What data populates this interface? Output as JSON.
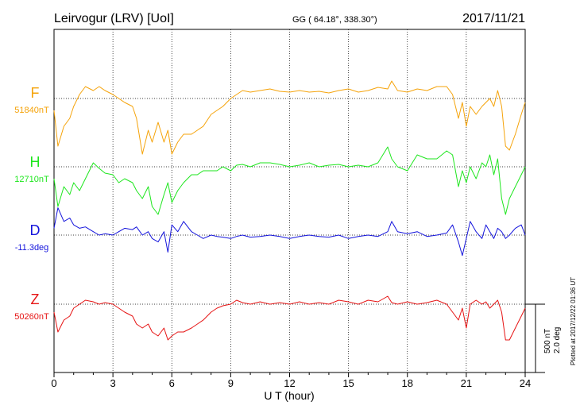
{
  "header": {
    "station": "Leirvogur (LRV)  [UoI]",
    "coords": "GG ( 64.18°, 338.30°)",
    "date": "2017/11/21"
  },
  "plotted_note": "Plotted at 2017/12/22 01:36 UT",
  "scale_bar": {
    "line1": "500 nT",
    "line2": "2.0 deg"
  },
  "colors": {
    "F": "#f5a30a",
    "H": "#1ee61e",
    "D": "#1414dc",
    "Z": "#e61414",
    "axis": "#000000"
  },
  "chart_data": {
    "type": "line",
    "xlabel": "U T (hour)",
    "xlim": [
      0,
      24
    ],
    "xticks": [
      0,
      3,
      6,
      9,
      12,
      15,
      18,
      21,
      24
    ],
    "grid": true,
    "series": [
      {
        "name": "F",
        "base_label": "51840nT",
        "color": "#f5a30a",
        "x": [
          0,
          0.2,
          0.5,
          0.8,
          1,
          1.3,
          1.6,
          2,
          2.3,
          2.6,
          3,
          3.3,
          3.6,
          4,
          4.2,
          4.5,
          4.8,
          5,
          5.3,
          5.6,
          5.8,
          6,
          6.3,
          6.6,
          7,
          7.3,
          7.6,
          8,
          8.3,
          8.6,
          9,
          9.3,
          9.6,
          10,
          10.5,
          11,
          11.5,
          12,
          12.5,
          13,
          13.5,
          14,
          14.5,
          15,
          15.5,
          16,
          16.5,
          17,
          17.2,
          17.5,
          18,
          18.5,
          19,
          19.5,
          20,
          20.3,
          20.6,
          20.8,
          21,
          21.2,
          21.5,
          21.8,
          22,
          22.2,
          22.4,
          22.6,
          22.8,
          23,
          23.2,
          23.5,
          23.8,
          24
        ],
        "y": [
          -15,
          -60,
          -35,
          -25,
          -10,
          5,
          15,
          10,
          15,
          10,
          5,
          0,
          -5,
          -10,
          -25,
          -70,
          -40,
          -55,
          -30,
          -55,
          -40,
          -70,
          -55,
          -45,
          -45,
          -40,
          -35,
          -20,
          -15,
          -10,
          0,
          5,
          10,
          8,
          10,
          12,
          9,
          8,
          10,
          8,
          9,
          7,
          10,
          12,
          8,
          10,
          14,
          12,
          22,
          10,
          8,
          12,
          10,
          15,
          15,
          5,
          -25,
          -5,
          -35,
          -10,
          -20,
          -10,
          -5,
          0,
          -10,
          10,
          -10,
          -60,
          -65,
          -45,
          -20,
          -5
        ]
      },
      {
        "name": "H",
        "base_label": "12710nT",
        "color": "#1ee61e",
        "x": [
          0,
          0.2,
          0.5,
          0.8,
          1,
          1.3,
          1.6,
          2,
          2.3,
          2.6,
          3,
          3.3,
          3.6,
          4,
          4.2,
          4.5,
          4.8,
          5,
          5.3,
          5.6,
          5.8,
          6,
          6.3,
          6.6,
          7,
          7.3,
          7.6,
          8,
          8.3,
          8.6,
          9,
          9.3,
          9.6,
          10,
          10.5,
          11,
          11.5,
          12,
          12.5,
          13,
          13.5,
          14,
          14.5,
          15,
          15.5,
          16,
          16.5,
          17,
          17.2,
          17.5,
          18,
          18.5,
          19,
          19.5,
          20,
          20.3,
          20.6,
          20.8,
          21,
          21.2,
          21.5,
          21.8,
          22,
          22.2,
          22.4,
          22.6,
          22.8,
          23,
          23.2,
          23.5,
          23.8,
          24
        ],
        "y": [
          -15,
          -50,
          -25,
          -35,
          -20,
          -30,
          -15,
          5,
          -2,
          -8,
          -10,
          -20,
          -15,
          -20,
          -30,
          -40,
          -25,
          -50,
          -60,
          -35,
          -20,
          -45,
          -30,
          -20,
          -10,
          -10,
          -5,
          -5,
          -5,
          0,
          -5,
          2,
          3,
          0,
          5,
          5,
          3,
          0,
          2,
          5,
          0,
          2,
          3,
          0,
          2,
          0,
          5,
          25,
          10,
          0,
          -5,
          15,
          10,
          10,
          20,
          15,
          -25,
          -5,
          -20,
          0,
          -15,
          5,
          0,
          15,
          -10,
          10,
          -40,
          -60,
          -40,
          -25,
          -10,
          0
        ]
      },
      {
        "name": "D",
        "base_label": "-11.3deg",
        "color": "#1414dc",
        "x": [
          0,
          0.2,
          0.5,
          0.8,
          1,
          1.3,
          1.6,
          2,
          2.3,
          2.6,
          3,
          3.3,
          3.6,
          4,
          4.2,
          4.5,
          4.8,
          5,
          5.3,
          5.6,
          5.8,
          6,
          6.3,
          6.6,
          7,
          7.3,
          7.6,
          8,
          8.3,
          8.6,
          9,
          9.3,
          9.6,
          10,
          10.5,
          11,
          11.5,
          12,
          12.5,
          13,
          13.5,
          14,
          14.5,
          15,
          15.5,
          16,
          16.5,
          17,
          17.2,
          17.5,
          18,
          18.5,
          19,
          19.5,
          20,
          20.3,
          20.6,
          20.8,
          21,
          21.2,
          21.5,
          21.8,
          22,
          22.2,
          22.4,
          22.6,
          22.8,
          23,
          23.2,
          23.5,
          23.8,
          24
        ],
        "y": [
          0.1,
          0.4,
          0.2,
          0.25,
          0.15,
          0.1,
          0.12,
          0.05,
          0,
          0.02,
          0,
          0.05,
          0.1,
          0.08,
          0.12,
          0,
          0.05,
          -0.05,
          -0.1,
          0.05,
          -0.25,
          0.15,
          0.05,
          0.2,
          0.05,
          0,
          -0.05,
          0,
          -0.02,
          -0.03,
          -0.05,
          -0.02,
          0,
          -0.03,
          -0.02,
          0,
          -0.02,
          -0.05,
          -0.02,
          0,
          -0.02,
          -0.03,
          0,
          -0.05,
          -0.02,
          0,
          -0.02,
          0.05,
          0.2,
          0.05,
          0.02,
          0.05,
          -0.02,
          0,
          0.03,
          0.15,
          -0.1,
          -0.3,
          -0.05,
          0.2,
          0.05,
          -0.05,
          0.15,
          0.05,
          -0.05,
          0.1,
          0.05,
          -0.05,
          0,
          0.1,
          0.15,
          0
        ]
      },
      {
        "name": "Z",
        "base_label": "50260nT",
        "color": "#e61414",
        "x": [
          0,
          0.2,
          0.5,
          0.8,
          1,
          1.3,
          1.6,
          2,
          2.3,
          2.6,
          3,
          3.3,
          3.6,
          4,
          4.2,
          4.5,
          4.8,
          5,
          5.3,
          5.6,
          5.8,
          6,
          6.3,
          6.6,
          7,
          7.3,
          7.6,
          8,
          8.3,
          8.6,
          9,
          9.3,
          9.6,
          10,
          10.5,
          11,
          11.5,
          12,
          12.5,
          13,
          13.5,
          14,
          14.5,
          15,
          15.5,
          16,
          16.5,
          17,
          17.2,
          17.5,
          18,
          18.5,
          19,
          19.5,
          20,
          20.3,
          20.6,
          20.8,
          21,
          21.2,
          21.5,
          21.8,
          22,
          22.2,
          22.4,
          22.6,
          22.8,
          23,
          23.2,
          23.5,
          23.8,
          24
        ],
        "y": [
          -10,
          -35,
          -20,
          -15,
          -5,
          0,
          5,
          3,
          0,
          2,
          0,
          -5,
          -10,
          -15,
          -25,
          -30,
          -25,
          -35,
          -40,
          -30,
          -45,
          -40,
          -35,
          -35,
          -30,
          -25,
          -20,
          -10,
          -5,
          -2,
          0,
          5,
          2,
          0,
          3,
          0,
          2,
          0,
          3,
          0,
          2,
          0,
          5,
          3,
          0,
          5,
          3,
          10,
          2,
          0,
          3,
          0,
          2,
          5,
          0,
          -10,
          -20,
          -5,
          -30,
          0,
          5,
          0,
          3,
          -5,
          0,
          5,
          -10,
          -45,
          -45,
          -30,
          -15,
          -5
        ]
      }
    ]
  }
}
